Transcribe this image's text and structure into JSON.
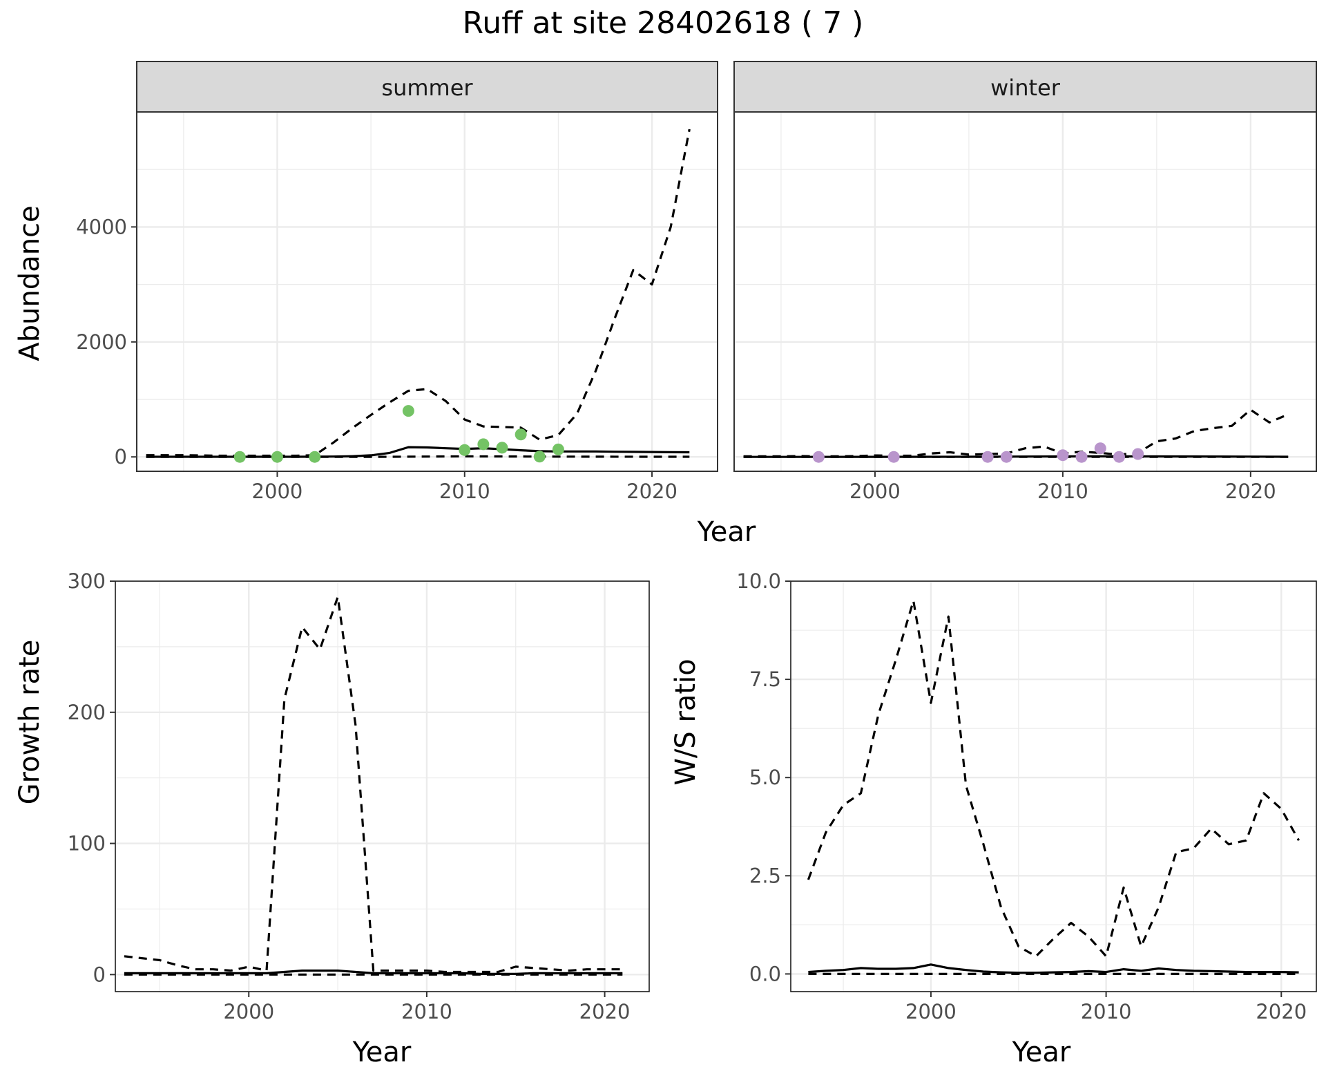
{
  "title": "Ruff at site 28402618 ( 7 )",
  "colors": {
    "summer_points": "#74c365",
    "winter_points": "#b995cc",
    "line": "#000000",
    "grid": "#ebebeb",
    "strip": "#d9d9d9"
  },
  "chart_data": [
    {
      "type": "line",
      "panel": "summer",
      "facet_label": "summer",
      "shared_xlabel": "Year",
      "ylabel": "Abundance",
      "xlim": [
        1992.5,
        2023.5
      ],
      "ylim": [
        -250,
        6000
      ],
      "x_ticks": [
        2000,
        2010,
        2020
      ],
      "y_ticks": [
        0,
        2000,
        4000
      ],
      "grid": true,
      "series": [
        {
          "style": "solid",
          "x": [
            1993,
            1994,
            1995,
            1996,
            1997,
            1998,
            1999,
            2000,
            2001,
            2002,
            2003,
            2004,
            2005,
            2006,
            2007,
            2008,
            2009,
            2010,
            2011,
            2012,
            2013,
            2014,
            2015,
            2016,
            2017,
            2018,
            2019,
            2020,
            2021,
            2022
          ],
          "y": [
            2,
            2,
            2,
            2,
            2,
            3,
            3,
            3,
            3,
            4,
            6,
            12,
            28,
            70,
            170,
            165,
            150,
            140,
            150,
            135,
            115,
            100,
            95,
            95,
            95,
            90,
            88,
            85,
            82,
            80
          ]
        },
        {
          "style": "dashed",
          "x": [
            1993,
            1994,
            1995,
            1996,
            1997,
            1998,
            1999,
            2000,
            2001,
            2002,
            2003,
            2004,
            2005,
            2006,
            2007,
            2008,
            2009,
            2010,
            2011,
            2012,
            2013,
            2014,
            2015,
            2016,
            2017,
            2018,
            2019,
            2020,
            2021,
            2022
          ],
          "y": [
            30,
            30,
            30,
            25,
            20,
            20,
            20,
            20,
            20,
            30,
            250,
            500,
            730,
            950,
            1150,
            1180,
            970,
            650,
            530,
            520,
            510,
            300,
            380,
            750,
            1500,
            2400,
            3250,
            3000,
            4000,
            5700
          ]
        },
        {
          "style": "dashed",
          "x": [
            1993,
            1995,
            2000,
            2005,
            2010,
            2015,
            2020,
            2022
          ],
          "y": [
            0,
            0,
            0,
            0,
            10,
            5,
            2,
            2
          ]
        }
      ],
      "points": {
        "x": [
          1998,
          2000,
          2002,
          2007,
          2010,
          2011,
          2012,
          2013,
          2014,
          2015
        ],
        "y": [
          0,
          0,
          0,
          800,
          120,
          220,
          160,
          390,
          5,
          130
        ]
      }
    },
    {
      "type": "line",
      "panel": "winter",
      "facet_label": "winter",
      "xlim": [
        1992.5,
        2023.5
      ],
      "ylim": [
        -250,
        6000
      ],
      "x_ticks": [
        2000,
        2010,
        2020
      ],
      "y_ticks": [
        0,
        2000,
        4000
      ],
      "grid": true,
      "series": [
        {
          "style": "solid",
          "x": [
            1993,
            1995,
            2000,
            2005,
            2010,
            2012,
            2015,
            2020,
            2022
          ],
          "y": [
            0,
            0,
            1,
            3,
            8,
            10,
            8,
            5,
            3
          ]
        },
        {
          "style": "dashed",
          "x": [
            1993,
            1994,
            1995,
            1996,
            1997,
            1998,
            1999,
            2000,
            2001,
            2002,
            2003,
            2004,
            2005,
            2006,
            2007,
            2008,
            2009,
            2010,
            2011,
            2012,
            2013,
            2014,
            2015,
            2016,
            2017,
            2018,
            2019,
            2020,
            2021,
            2022
          ],
          "y": [
            10,
            10,
            10,
            15,
            10,
            10,
            15,
            25,
            20,
            20,
            60,
            80,
            40,
            50,
            60,
            150,
            180,
            60,
            90,
            70,
            40,
            70,
            270,
            320,
            450,
            500,
            540,
            820,
            600,
            740
          ]
        },
        {
          "style": "dashed",
          "x": [
            1993,
            2000,
            2010,
            2022
          ],
          "y": [
            0,
            0,
            0,
            0
          ]
        }
      ],
      "points": {
        "x": [
          1997,
          2001,
          2006,
          2007,
          2010,
          2011,
          2012,
          2013,
          2014
        ],
        "y": [
          0,
          0,
          0,
          0,
          30,
          0,
          150,
          0,
          50
        ]
      }
    },
    {
      "type": "line",
      "panel": "growth",
      "xlabel": "Year",
      "ylabel": "Growth rate",
      "xlim": [
        1992.5,
        2022.5
      ],
      "ylim": [
        -13,
        300
      ],
      "x_ticks": [
        2000,
        2010,
        2020
      ],
      "y_ticks": [
        0,
        100,
        200,
        300
      ],
      "grid": true,
      "series": [
        {
          "style": "solid",
          "x": [
            1993,
            1994,
            1995,
            1996,
            1997,
            1998,
            1999,
            2000,
            2001,
            2002,
            2003,
            2004,
            2005,
            2006,
            2007,
            2008,
            2009,
            2010,
            2011,
            2012,
            2013,
            2014,
            2015,
            2016,
            2017,
            2018,
            2019,
            2020,
            2021
          ],
          "y": [
            1,
            1,
            1,
            1,
            1,
            1,
            1,
            1,
            1,
            2,
            3,
            3,
            3,
            2,
            1,
            1,
            1,
            1,
            1,
            1,
            0.5,
            0.5,
            0.5,
            1,
            1,
            1,
            1,
            1,
            1
          ]
        },
        {
          "style": "dashed",
          "x": [
            1993,
            1995,
            1996,
            1997,
            1998,
            1999,
            2000,
            2001,
            2002,
            2003,
            2004,
            2005,
            2006,
            2007,
            2008,
            2009,
            2010,
            2011,
            2012,
            2013,
            2014,
            2015,
            2016,
            2017,
            2018,
            2019,
            2020,
            2021
          ],
          "y": [
            14,
            11,
            7,
            4,
            4,
            3,
            6,
            3,
            210,
            265,
            248,
            288,
            190,
            3,
            3,
            3,
            3,
            2,
            2,
            2,
            2,
            6,
            5,
            4,
            3,
            4,
            4,
            4
          ]
        },
        {
          "style": "dashed",
          "x": [
            1993,
            2000,
            2010,
            2021
          ],
          "y": [
            0,
            0,
            0,
            0
          ]
        }
      ]
    },
    {
      "type": "line",
      "panel": "ratio",
      "xlabel": "Year",
      "ylabel": "W/S ratio",
      "xlim": [
        1992,
        2022
      ],
      "ylim": [
        -0.45,
        10
      ],
      "x_ticks": [
        2000,
        2010,
        2020
      ],
      "y_ticks": [
        0.0,
        2.5,
        5.0,
        7.5,
        10.0
      ],
      "y_tick_labels": [
        "0.0",
        "2.5",
        "5.0",
        "7.5",
        "10.0"
      ],
      "grid": true,
      "series": [
        {
          "style": "solid",
          "x": [
            1993,
            1994,
            1995,
            1996,
            1997,
            1998,
            1999,
            2000,
            2001,
            2002,
            2003,
            2004,
            2005,
            2006,
            2007,
            2008,
            2009,
            2010,
            2011,
            2012,
            2013,
            2014,
            2015,
            2016,
            2017,
            2018,
            2019,
            2020,
            2021
          ],
          "y": [
            0.05,
            0.08,
            0.1,
            0.15,
            0.13,
            0.13,
            0.15,
            0.24,
            0.15,
            0.1,
            0.06,
            0.04,
            0.03,
            0.03,
            0.04,
            0.05,
            0.07,
            0.05,
            0.12,
            0.08,
            0.14,
            0.1,
            0.08,
            0.07,
            0.06,
            0.05,
            0.05,
            0.05,
            0.04
          ]
        },
        {
          "style": "dashed",
          "x": [
            1993,
            1994,
            1995,
            1996,
            1997,
            1998,
            1999,
            2000,
            2001,
            2002,
            2003,
            2004,
            2005,
            2006,
            2007,
            2008,
            2009,
            2010,
            2011,
            2012,
            2013,
            2014,
            2015,
            2016,
            2017,
            2018,
            2019,
            2020,
            2021
          ],
          "y": [
            2.4,
            3.6,
            4.3,
            4.6,
            6.6,
            8.0,
            9.5,
            6.9,
            9.1,
            4.8,
            3.3,
            1.7,
            0.7,
            0.45,
            0.9,
            1.3,
            0.95,
            0.45,
            2.2,
            0.7,
            1.7,
            3.1,
            3.2,
            3.7,
            3.3,
            3.4,
            4.6,
            4.2,
            3.4
          ]
        },
        {
          "style": "dashed",
          "x": [
            1993,
            2000,
            2010,
            2021
          ],
          "y": [
            0,
            0,
            0,
            0
          ]
        }
      ]
    }
  ]
}
